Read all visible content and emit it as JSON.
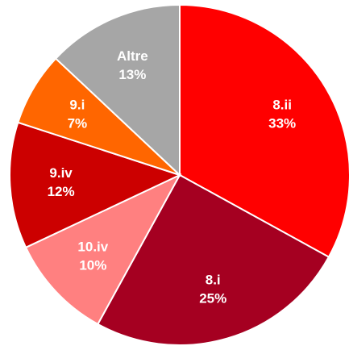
{
  "chart_data": {
    "type": "pie",
    "categories": [
      "8.ii",
      "8.i",
      "10.iv",
      "9.iv",
      "9.i",
      "Altre"
    ],
    "values": [
      33,
      25,
      10,
      12,
      7,
      13
    ],
    "value_labels": [
      "33%",
      "25%",
      "10%",
      "12%",
      "7%",
      "13%"
    ],
    "colors": [
      "#ff0000",
      "#a50021",
      "#ff8080",
      "#cc0000",
      "#ff6600",
      "#a6a6a6"
    ]
  }
}
